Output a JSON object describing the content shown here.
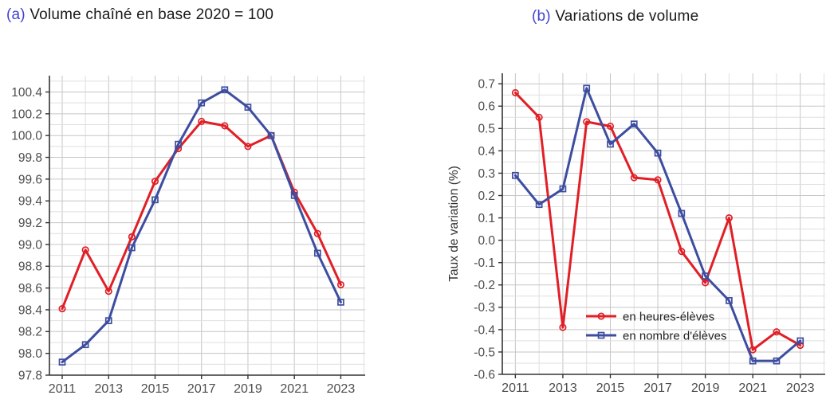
{
  "page": {
    "background": "#ffffff"
  },
  "panels": {
    "a": {
      "prefix": "(a)",
      "title": "Volume chaîné en base 2020 = 100"
    },
    "b": {
      "prefix": "(b)",
      "title": "Variations de volume"
    }
  },
  "colors": {
    "series_red": "#e01f26",
    "series_blue": "#3d4da0",
    "grid_major": "#c6c6c6",
    "grid_minor": "#dfdfdf",
    "axis": "#333333",
    "tick_label": "#4d4d4d",
    "legend_text": "#222222"
  },
  "chart_data": [
    {
      "id": "a",
      "type": "line",
      "title": "(a) Volume chaîné en base 2020 = 100",
      "x": [
        2011,
        2012,
        2013,
        2014,
        2015,
        2016,
        2017,
        2018,
        2019,
        2020,
        2021,
        2022,
        2023
      ],
      "xlim": [
        2010.45,
        2024.05
      ],
      "ylim": [
        97.8,
        100.55
      ],
      "xtick_years": [
        2011,
        2013,
        2015,
        2017,
        2019,
        2021,
        2023
      ],
      "xtick_labels": [
        "2011",
        "2013",
        "2015",
        "2017",
        "2019",
        "2021",
        "2023"
      ],
      "ytick_values": [
        97.8,
        98.0,
        98.2,
        98.4,
        98.6,
        98.8,
        99.0,
        99.2,
        99.4,
        99.6,
        99.8,
        100.0,
        100.2,
        100.4
      ],
      "ytick_labels": [
        "97.8",
        "98.0",
        "98.2",
        "98.4",
        "98.6",
        "98.8",
        "99.0",
        "99.2",
        "99.4",
        "99.6",
        "99.8",
        "100.0",
        "100.2",
        "100.4"
      ],
      "xlabel": "",
      "ylabel": "",
      "grid": "major+minor",
      "series": [
        {
          "name": "en heures-élèves",
          "marker": "circle",
          "color_key": "series_red",
          "values": [
            98.41,
            98.95,
            98.57,
            99.07,
            99.58,
            99.88,
            100.13,
            100.09,
            99.9,
            100.0,
            99.48,
            99.1,
            98.63
          ]
        },
        {
          "name": "en nombre d'élèves",
          "marker": "square",
          "color_key": "series_blue",
          "values": [
            97.92,
            98.08,
            98.3,
            98.97,
            99.41,
            99.92,
            100.3,
            100.42,
            100.26,
            100.0,
            99.45,
            98.92,
            98.47
          ]
        }
      ]
    },
    {
      "id": "b",
      "type": "line",
      "title": "(b) Variations de volume",
      "x": [
        2011,
        2012,
        2013,
        2014,
        2015,
        2016,
        2017,
        2018,
        2019,
        2020,
        2021,
        2022,
        2023
      ],
      "xlim": [
        2010.45,
        2024.05
      ],
      "ylim": [
        -0.6,
        0.747
      ],
      "xtick_years": [
        2011,
        2013,
        2015,
        2017,
        2019,
        2021,
        2023
      ],
      "xtick_labels": [
        "2011",
        "2013",
        "2015",
        "2017",
        "2019",
        "2021",
        "2023"
      ],
      "ytick_values": [
        -0.6,
        -0.5,
        -0.4,
        -0.3,
        -0.2,
        -0.1,
        0.0,
        0.1,
        0.2,
        0.3,
        0.4,
        0.5,
        0.6,
        0.7
      ],
      "ytick_labels": [
        "-0.6",
        "-0.5",
        "-0.4",
        "-0.3",
        "-0.2",
        "-0.1",
        "0.0",
        "0.1",
        "0.2",
        "0.3",
        "0.4",
        "0.5",
        "0.6",
        "0.7"
      ],
      "xlabel": "",
      "ylabel": "Taux de variation (%)",
      "grid": "major+minor",
      "legend": {
        "position": "inside-bottom",
        "items": [
          "en heures-élèves",
          "en nombre d'élèves"
        ]
      },
      "series": [
        {
          "name": "en heures-élèves",
          "marker": "circle",
          "color_key": "series_red",
          "values": [
            0.66,
            0.55,
            -0.39,
            0.53,
            0.51,
            0.28,
            0.27,
            -0.05,
            -0.19,
            0.1,
            -0.49,
            -0.41,
            -0.47
          ]
        },
        {
          "name": "en nombre d'élèves",
          "marker": "square",
          "color_key": "series_blue",
          "values": [
            0.29,
            0.16,
            0.23,
            0.68,
            0.43,
            0.52,
            0.39,
            0.12,
            -0.16,
            -0.27,
            -0.54,
            -0.54,
            -0.45
          ]
        }
      ]
    }
  ]
}
